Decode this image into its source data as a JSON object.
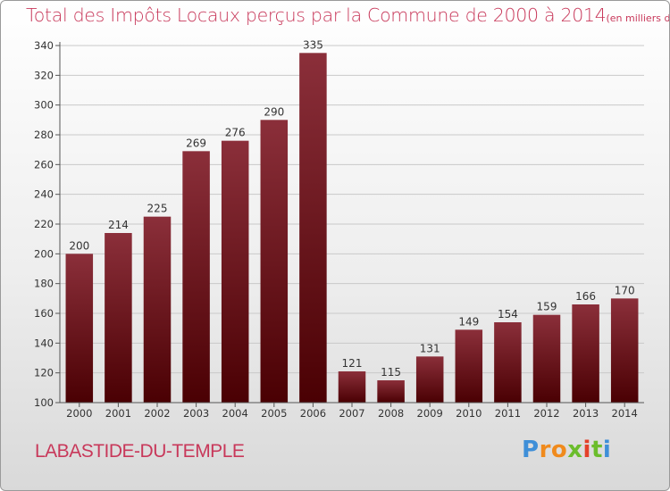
{
  "title": "Total des Impôts Locaux perçus par la Commune de 2000 à 2014",
  "unit_note": "(en milliers d'€)",
  "commune": "LABASTIDE-DU-TEMPLE",
  "logo": {
    "letters": [
      "P",
      "r",
      "o",
      "x",
      "i",
      "t",
      "i"
    ],
    "colors": [
      "#3f8fd8",
      "#f08a1c",
      "#f08a1c",
      "#6bbd2c",
      "#e4402a",
      "#6bbd2c",
      "#3f8fd8"
    ]
  },
  "colors": {
    "bar_top": "#8b2f3a",
    "bar_bottom": "#4a0003",
    "title": "#c8385a",
    "grid": "#c9c9c9"
  },
  "chart_data": {
    "type": "bar",
    "categories": [
      "2000",
      "2001",
      "2002",
      "2003",
      "2004",
      "2005",
      "2006",
      "2007",
      "2008",
      "2009",
      "2010",
      "2011",
      "2012",
      "2013",
      "2014"
    ],
    "values": [
      200,
      214,
      225,
      269,
      276,
      290,
      335,
      121,
      115,
      131,
      149,
      154,
      159,
      166,
      170
    ],
    "ylim": [
      100,
      340
    ],
    "yticks": [
      100,
      120,
      140,
      160,
      180,
      200,
      220,
      240,
      260,
      280,
      300,
      320,
      340
    ],
    "grid": true
  }
}
